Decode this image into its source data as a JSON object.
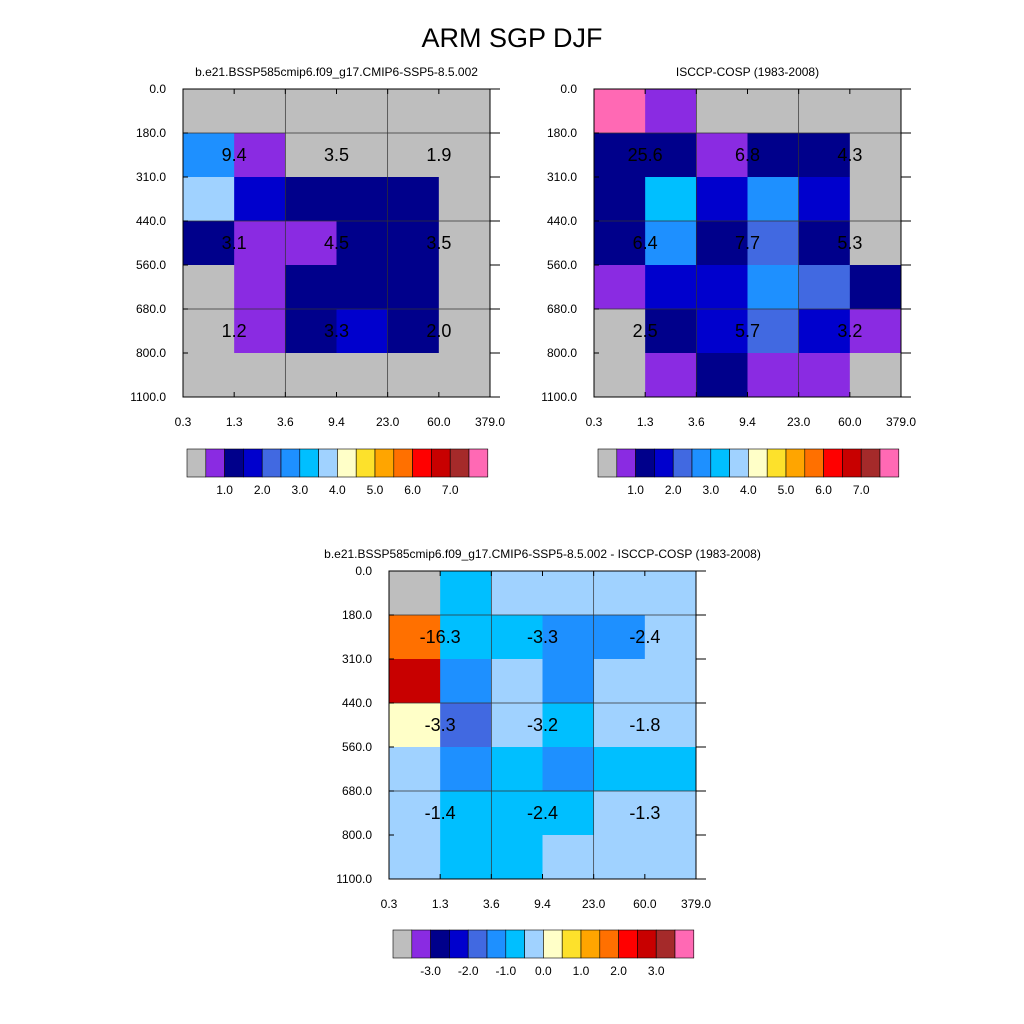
{
  "figure": {
    "title": "ARM SGP DJF"
  },
  "chart_data": [
    {
      "type": "heatmap",
      "title": "b.e21.BSSP585cmip6.f09_g17.CMIP6-SSP5-8.5.002",
      "x_ticks": [
        "0.3",
        "1.3",
        "3.6",
        "9.4",
        "23.0",
        "60.0",
        "379.0"
      ],
      "y_ticks": [
        "0.0",
        "180.0",
        "310.0",
        "440.0",
        "560.0",
        "680.0",
        "800.0",
        "1100.0"
      ],
      "cell_colors": [
        [
          "#bebebe",
          "#bebebe",
          "#bebebe",
          "#bebebe",
          "#bebebe",
          "#bebebe"
        ],
        [
          "#1e90ff",
          "#8a2be2",
          "#bebebe",
          "#bebebe",
          "#bebebe",
          "#bebebe"
        ],
        [
          "#a0d2ff",
          "#0000cd",
          "#00008b",
          "#00008b",
          "#00008b",
          "#bebebe"
        ],
        [
          "#00008b",
          "#8a2be2",
          "#8a2be2",
          "#00008b",
          "#00008b",
          "#bebebe"
        ],
        [
          "#bebebe",
          "#8a2be2",
          "#00008b",
          "#00008b",
          "#00008b",
          "#bebebe"
        ],
        [
          "#bebebe",
          "#8a2be2",
          "#00008b",
          "#0000cd",
          "#00008b",
          "#bebebe"
        ],
        [
          "#bebebe",
          "#bebebe",
          "#bebebe",
          "#bebebe",
          "#bebebe",
          "#bebebe"
        ]
      ],
      "box_labels": [
        [
          "9.4",
          "3.5",
          "1.9"
        ],
        [
          "3.1",
          "4.5",
          "3.5"
        ],
        [
          "1.2",
          "3.3",
          "2.0"
        ]
      ],
      "colorbar": {
        "colors": [
          "#bebebe",
          "#8a2be2",
          "#00008b",
          "#0000cd",
          "#4169e1",
          "#1e90ff",
          "#00bfff",
          "#a0d2ff",
          "#ffffc8",
          "#fde12b",
          "#ffa500",
          "#ff7000",
          "#ff0000",
          "#c80000",
          "#a52a2a",
          "#ff69b4"
        ],
        "labels": [
          "1.0",
          "2.0",
          "3.0",
          "4.0",
          "5.0",
          "6.0",
          "7.0"
        ]
      }
    },
    {
      "type": "heatmap",
      "title": "ISCCP-COSP (1983-2008)",
      "x_ticks": [
        "0.3",
        "1.3",
        "3.6",
        "9.4",
        "23.0",
        "60.0",
        "379.0"
      ],
      "y_ticks": [
        "0.0",
        "180.0",
        "310.0",
        "440.0",
        "560.0",
        "680.0",
        "800.0",
        "1100.0"
      ],
      "cell_colors": [
        [
          "#ff69b4",
          "#8a2be2",
          "#bebebe",
          "#bebebe",
          "#bebebe",
          "#bebebe"
        ],
        [
          "#00008b",
          "#00008b",
          "#8a2be2",
          "#00008b",
          "#00008b",
          "#bebebe"
        ],
        [
          "#00008b",
          "#00bfff",
          "#0000cd",
          "#1e90ff",
          "#0000cd",
          "#bebebe"
        ],
        [
          "#00008b",
          "#1e90ff",
          "#00008b",
          "#4169e1",
          "#00008b",
          "#bebebe"
        ],
        [
          "#8a2be2",
          "#0000cd",
          "#0000cd",
          "#1e90ff",
          "#4169e1",
          "#00008b"
        ],
        [
          "#bebebe",
          "#00008b",
          "#0000cd",
          "#4169e1",
          "#0000cd",
          "#8a2be2"
        ],
        [
          "#bebebe",
          "#8a2be2",
          "#00008b",
          "#8a2be2",
          "#8a2be2",
          "#bebebe"
        ]
      ],
      "box_labels": [
        [
          "25.6",
          "6.8",
          "4.3"
        ],
        [
          "6.4",
          "7.7",
          "5.3"
        ],
        [
          "2.5",
          "5.7",
          "3.2"
        ]
      ],
      "colorbar": {
        "colors": [
          "#bebebe",
          "#8a2be2",
          "#00008b",
          "#0000cd",
          "#4169e1",
          "#1e90ff",
          "#00bfff",
          "#a0d2ff",
          "#ffffc8",
          "#fde12b",
          "#ffa500",
          "#ff7000",
          "#ff0000",
          "#c80000",
          "#a52a2a",
          "#ff69b4"
        ],
        "labels": [
          "1.0",
          "2.0",
          "3.0",
          "4.0",
          "5.0",
          "6.0",
          "7.0"
        ]
      }
    },
    {
      "type": "heatmap",
      "title": "b.e21.BSSP585cmip6.f09_g17.CMIP6-SSP5-8.5.002 - ISCCP-COSP (1983-2008)",
      "x_ticks": [
        "0.3",
        "1.3",
        "3.6",
        "9.4",
        "23.0",
        "60.0",
        "379.0"
      ],
      "y_ticks": [
        "0.0",
        "180.0",
        "310.0",
        "440.0",
        "560.0",
        "680.0",
        "800.0",
        "1100.0"
      ],
      "cell_colors": [
        [
          "#bebebe",
          "#00bfff",
          "#a0d2ff",
          "#a0d2ff",
          "#a0d2ff",
          "#a0d2ff"
        ],
        [
          "#ff7000",
          "#00bfff",
          "#00bfff",
          "#1e90ff",
          "#1e90ff",
          "#a0d2ff"
        ],
        [
          "#c80000",
          "#1e90ff",
          "#a0d2ff",
          "#1e90ff",
          "#a0d2ff",
          "#a0d2ff"
        ],
        [
          "#ffffc8",
          "#4169e1",
          "#a0d2ff",
          "#00bfff",
          "#a0d2ff",
          "#a0d2ff"
        ],
        [
          "#a0d2ff",
          "#1e90ff",
          "#00bfff",
          "#1e90ff",
          "#00bfff",
          "#00bfff"
        ],
        [
          "#a0d2ff",
          "#00bfff",
          "#00bfff",
          "#00bfff",
          "#a0d2ff",
          "#a0d2ff"
        ],
        [
          "#a0d2ff",
          "#00bfff",
          "#00bfff",
          "#a0d2ff",
          "#a0d2ff",
          "#a0d2ff"
        ]
      ],
      "box_labels": [
        [
          "-16.3",
          "-3.3",
          "-2.4"
        ],
        [
          "-3.3",
          "-3.2",
          "-1.8"
        ],
        [
          "-1.4",
          "-2.4",
          "-1.3"
        ]
      ],
      "colorbar": {
        "colors": [
          "#bebebe",
          "#8a2be2",
          "#00008b",
          "#0000cd",
          "#4169e1",
          "#1e90ff",
          "#00bfff",
          "#a0d2ff",
          "#ffffc8",
          "#fde12b",
          "#ffa500",
          "#ff7000",
          "#ff0000",
          "#c80000",
          "#a52a2a",
          "#ff69b4"
        ],
        "labels": [
          "-3.0",
          "-2.0",
          "-1.0",
          "0.0",
          "1.0",
          "2.0",
          "3.0"
        ]
      }
    }
  ]
}
